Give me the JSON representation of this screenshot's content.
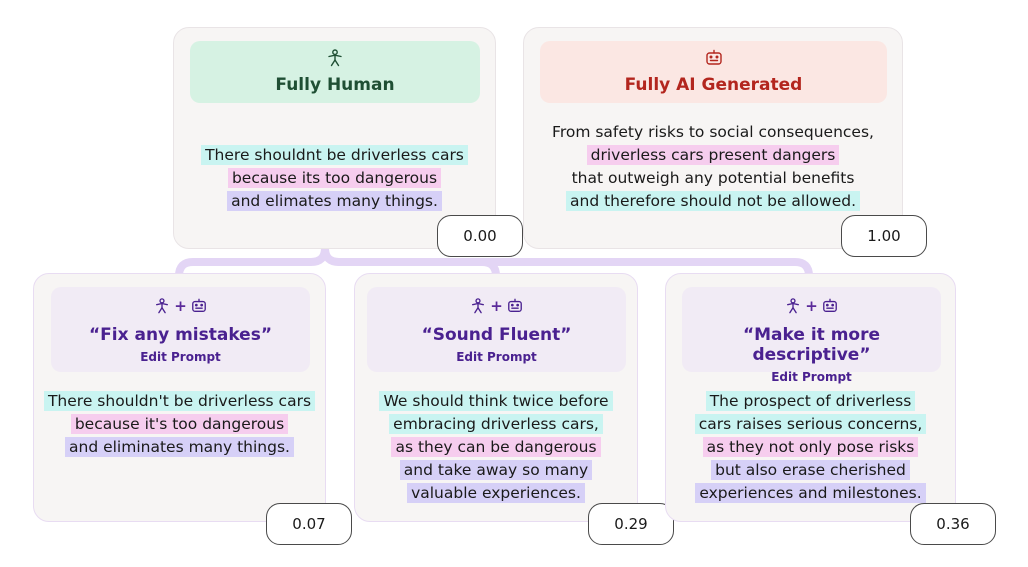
{
  "human": {
    "title": "Fully Human",
    "icon": "person-icon",
    "lines": [
      "There shouldnt be driverless cars",
      "because its too dangerous",
      "and elimates many things."
    ],
    "colors": [
      "cyan",
      "pink",
      "lav"
    ],
    "score": "0.00"
  },
  "ai": {
    "title": "Fully AI Generated",
    "icon": "robot-icon",
    "lines": [
      "From safety risks to social consequences,",
      "driverless cars present dangers",
      "that outweigh any potential benefits",
      "and therefore should not be allowed."
    ],
    "colors": [
      "none",
      "pink",
      "none",
      "cyan"
    ],
    "score": "1.00"
  },
  "edits": [
    {
      "prompt": "“Fix any mistakes”",
      "sub": "Edit Prompt",
      "lines": [
        "There shouldn't be driverless cars",
        "because it's too dangerous",
        "and eliminates many things."
      ],
      "colors": [
        "cyan",
        "pink",
        "lav"
      ],
      "score": "0.07"
    },
    {
      "prompt": "“Sound Fluent”",
      "sub": "Edit Prompt",
      "lines": [
        "We should think twice before",
        "embracing driverless cars,",
        "as they can be dangerous",
        "and take away so many",
        "valuable experiences."
      ],
      "colors": [
        "cyan",
        "cyan",
        "pink",
        "lav",
        "lav"
      ],
      "score": "0.29"
    },
    {
      "prompt": "“Make it more descriptive”",
      "sub": "Edit Prompt",
      "lines": [
        "The prospect of driverless",
        "cars raises serious concerns,",
        "as they not only pose risks",
        "but also erase cherished",
        "experiences and milestones."
      ],
      "colors": [
        "cyan",
        "cyan",
        "pink",
        "lav",
        "lav"
      ],
      "score": "0.36"
    }
  ],
  "colors": {
    "cyan": "#c9f4f1",
    "pink": "#f6cdee",
    "lav": "#d6d0f7",
    "green_header": "#d6f2e3",
    "red_header": "#fbe7e3",
    "purple_header": "#f1ebf5",
    "connector": "#e3d5f5"
  }
}
